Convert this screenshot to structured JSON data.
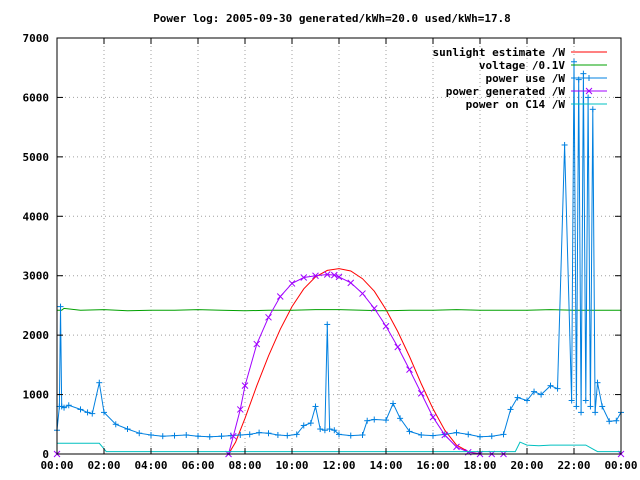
{
  "chart_data": {
    "type": "line",
    "title": "Power log: 2005-09-30 generated/kWh=20.0 used/kWh=17.8",
    "xlabel": "",
    "ylabel": "",
    "x_ticks": [
      "00:00",
      "02:00",
      "04:00",
      "06:00",
      "08:00",
      "10:00",
      "12:00",
      "14:00",
      "16:00",
      "18:00",
      "20:00",
      "22:00",
      "00:00"
    ],
    "xlim_hours": [
      0,
      24
    ],
    "ylim": [
      0,
      7000
    ],
    "y_ticks": [
      0,
      1000,
      2000,
      3000,
      4000,
      5000,
      6000,
      7000
    ],
    "grid": true,
    "legend_position": "top-right",
    "colors": {
      "sunlight": "#ff0000",
      "voltage": "#00a000",
      "power_use": "#0080e0",
      "power_generated": "#a000ff",
      "power_c14": "#00c0c0"
    },
    "series": [
      {
        "name": "sunlight estimate /W",
        "color": "#ff0000",
        "x": [
          0,
          7.3,
          7.6,
          8,
          8.5,
          9,
          9.5,
          10,
          10.5,
          11,
          11.5,
          12,
          12.5,
          13,
          13.5,
          14,
          14.5,
          15,
          15.5,
          16,
          16.5,
          17,
          17.5,
          18,
          18.5,
          19,
          19.5,
          20,
          24
        ],
        "y": [
          0,
          0,
          200,
          600,
          1150,
          1650,
          2100,
          2480,
          2780,
          2980,
          3090,
          3120,
          3080,
          2950,
          2740,
          2430,
          2060,
          1640,
          1180,
          760,
          400,
          150,
          40,
          0,
          0,
          0,
          0,
          0,
          0
        ]
      },
      {
        "name": "voltage /0.1V",
        "color": "#00a000",
        "x": [
          0,
          0.2,
          0.3,
          1,
          2,
          3,
          4,
          5,
          6,
          7,
          8,
          9,
          10,
          11,
          12,
          13,
          14,
          15,
          16,
          17,
          18,
          19,
          20,
          21,
          22,
          23,
          24
        ],
        "y": [
          2420,
          2420,
          2450,
          2420,
          2430,
          2410,
          2420,
          2420,
          2430,
          2420,
          2410,
          2420,
          2420,
          2430,
          2430,
          2420,
          2410,
          2420,
          2420,
          2430,
          2420,
          2420,
          2420,
          2430,
          2420,
          2420,
          2420
        ]
      },
      {
        "name": "power use /W",
        "color": "#0080e0",
        "x": [
          0,
          0.1,
          0.15,
          0.2,
          0.3,
          0.5,
          1,
          1.3,
          1.5,
          1.8,
          2,
          2.5,
          3,
          3.5,
          4,
          4.5,
          5,
          5.5,
          6,
          6.5,
          7,
          7.4,
          7.8,
          8.2,
          8.6,
          9,
          9.4,
          9.8,
          10.2,
          10.5,
          10.8,
          11,
          11.2,
          11.4,
          11.5,
          11.6,
          11.8,
          12,
          12.5,
          13,
          13.2,
          13.5,
          14,
          14.3,
          14.6,
          15,
          15.5,
          16,
          16.5,
          17,
          17.5,
          18,
          18.5,
          19,
          19.3,
          19.6,
          20,
          20.3,
          20.6,
          21,
          21.3,
          21.6,
          21.9,
          22,
          22.1,
          22.2,
          22.3,
          22.4,
          22.5,
          22.6,
          22.7,
          22.8,
          22.9,
          23,
          23.2,
          23.5,
          23.8,
          24
        ],
        "y": [
          400,
          800,
          2480,
          800,
          780,
          820,
          750,
          700,
          680,
          1200,
          700,
          500,
          420,
          350,
          320,
          300,
          310,
          320,
          300,
          290,
          300,
          310,
          320,
          330,
          360,
          350,
          320,
          310,
          330,
          480,
          520,
          800,
          420,
          400,
          2180,
          420,
          400,
          330,
          310,
          320,
          560,
          580,
          570,
          850,
          600,
          380,
          320,
          310,
          330,
          360,
          330,
          290,
          300,
          330,
          750,
          950,
          900,
          1050,
          1000,
          1150,
          1100,
          5200,
          900,
          6600,
          800,
          6300,
          700,
          6400,
          900,
          6000,
          800,
          5800,
          700,
          1200,
          800,
          550,
          560,
          700
        ]
      },
      {
        "name": "power generated /W",
        "color": "#a000ff",
        "x": [
          0,
          7.3,
          7.5,
          7.8,
          8,
          8.5,
          9,
          9.5,
          10,
          10.5,
          11,
          11.5,
          11.8,
          12,
          12.5,
          13,
          13.5,
          14,
          14.5,
          15,
          15.5,
          16,
          16.5,
          17,
          17.5,
          18,
          18.5,
          19,
          24
        ],
        "y": [
          0,
          0,
          300,
          750,
          1150,
          1850,
          2300,
          2650,
          2870,
          2970,
          3000,
          3020,
          3010,
          2980,
          2880,
          2700,
          2450,
          2150,
          1800,
          1420,
          1020,
          620,
          320,
          120,
          30,
          0,
          0,
          0,
          0
        ]
      },
      {
        "name": "power on C14 /W",
        "color": "#00c0c0",
        "x": [
          0,
          1.8,
          2.1,
          7.5,
          8,
          19.5,
          19.7,
          20,
          20.5,
          21,
          21.5,
          22,
          22.5,
          23,
          24
        ],
        "y": [
          180,
          180,
          40,
          40,
          40,
          40,
          200,
          150,
          140,
          150,
          150,
          150,
          150,
          40,
          40
        ]
      }
    ]
  }
}
